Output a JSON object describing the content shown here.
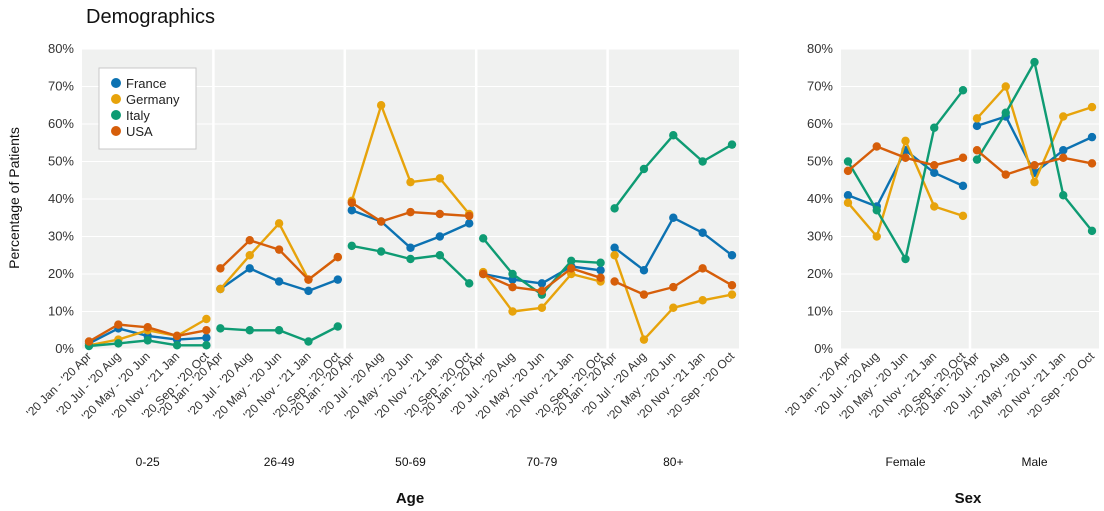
{
  "chart_data": {
    "type": "line",
    "title": "Demographics",
    "ylabel": "Percentage of Patients",
    "ylim": [
      0,
      80
    ],
    "yticks": [
      "0%",
      "10%",
      "20%",
      "30%",
      "40%",
      "50%",
      "60%",
      "70%",
      "80%"
    ],
    "periods": [
      "'20 Jan - '20 Apr",
      "'20 Jul - '20 Aug",
      "'20 May - '20 Jun",
      "'20 Nov - '21 Jan",
      "'20 Sep - '20 Oct"
    ],
    "colors": {
      "France": "#0c72b2",
      "Germany": "#e7a30b",
      "Italy": "#0e9b73",
      "USA": "#d65e0a"
    },
    "legend": {
      "entries": [
        "France",
        "Germany",
        "Italy",
        "USA"
      ],
      "placement": "top-left"
    },
    "panels": [
      {
        "xlabel": "Age",
        "groups": [
          {
            "label": "0-25",
            "series": [
              {
                "name": "France",
                "values": [
                  1.5,
                  5.5,
                  3.5,
                  2.5,
                  3
                ]
              },
              {
                "name": "Germany",
                "values": [
                  1,
                  2.5,
                  5,
                  3.5,
                  8
                ]
              },
              {
                "name": "Italy",
                "values": [
                  0.8,
                  1.5,
                  2.3,
                  1,
                  1
                ]
              },
              {
                "name": "USA",
                "values": [
                  2,
                  6.5,
                  5.8,
                  3.5,
                  5
                ]
              }
            ]
          },
          {
            "label": "26-49",
            "series": [
              {
                "name": "France",
                "values": [
                  16,
                  21.5,
                  18,
                  15.5,
                  18.5
                ]
              },
              {
                "name": "Germany",
                "values": [
                  16,
                  25,
                  33.5,
                  18.5,
                  24.5
                ]
              },
              {
                "name": "Italy",
                "values": [
                  5.5,
                  5,
                  5,
                  2,
                  6
                ]
              },
              {
                "name": "USA",
                "values": [
                  21.5,
                  29,
                  26.5,
                  18.5,
                  24.5
                ]
              }
            ]
          },
          {
            "label": "50-69",
            "series": [
              {
                "name": "France",
                "values": [
                  37,
                  34,
                  27,
                  30,
                  33.5
                ]
              },
              {
                "name": "Germany",
                "values": [
                  39.5,
                  65,
                  44.5,
                  45.5,
                  36
                ]
              },
              {
                "name": "Italy",
                "values": [
                  27.5,
                  26,
                  24,
                  25,
                  17.5
                ]
              },
              {
                "name": "USA",
                "values": [
                  39,
                  34,
                  36.5,
                  36,
                  35.5
                ]
              }
            ]
          },
          {
            "label": "70-79",
            "series": [
              {
                "name": "France",
                "values": [
                  20,
                  18.5,
                  17.5,
                  22,
                  21
                ]
              },
              {
                "name": "Germany",
                "values": [
                  20.5,
                  10,
                  11,
                  20,
                  18
                ]
              },
              {
                "name": "Italy",
                "values": [
                  29.5,
                  20,
                  14.5,
                  23.5,
                  23
                ]
              },
              {
                "name": "USA",
                "values": [
                  20,
                  16.5,
                  15.5,
                  21.5,
                  19
                ]
              }
            ]
          },
          {
            "label": "80+",
            "series": [
              {
                "name": "France",
                "values": [
                  27,
                  21,
                  35,
                  31,
                  25
                ]
              },
              {
                "name": "Germany",
                "values": [
                  25,
                  2.5,
                  11,
                  13,
                  14.5
                ]
              },
              {
                "name": "Italy",
                "values": [
                  37.5,
                  48,
                  57,
                  50,
                  54.5
                ]
              },
              {
                "name": "USA",
                "values": [
                  18,
                  14.5,
                  16.5,
                  21.5,
                  17
                ]
              }
            ]
          }
        ]
      },
      {
        "xlabel": "Sex",
        "groups": [
          {
            "label": "Female",
            "series": [
              {
                "name": "France",
                "values": [
                  41,
                  38,
                  53,
                  47,
                  43.5
                ]
              },
              {
                "name": "Germany",
                "values": [
                  39,
                  30,
                  55.5,
                  38,
                  35.5
                ]
              },
              {
                "name": "Italy",
                "values": [
                  50,
                  37,
                  24,
                  59,
                  69
                ]
              },
              {
                "name": "USA",
                "values": [
                  47.5,
                  54,
                  51,
                  49,
                  51
                ]
              }
            ]
          },
          {
            "label": "Male",
            "series": [
              {
                "name": "France",
                "values": [
                  59.5,
                  62,
                  47,
                  53,
                  56.5
                ]
              },
              {
                "name": "Germany",
                "values": [
                  61.5,
                  70,
                  44.5,
                  62,
                  64.5
                ]
              },
              {
                "name": "Italy",
                "values": [
                  50.5,
                  63,
                  76.5,
                  41,
                  31.5
                ]
              },
              {
                "name": "USA",
                "values": [
                  53,
                  46.5,
                  49,
                  51,
                  49.5
                ]
              }
            ]
          }
        ]
      }
    ]
  }
}
